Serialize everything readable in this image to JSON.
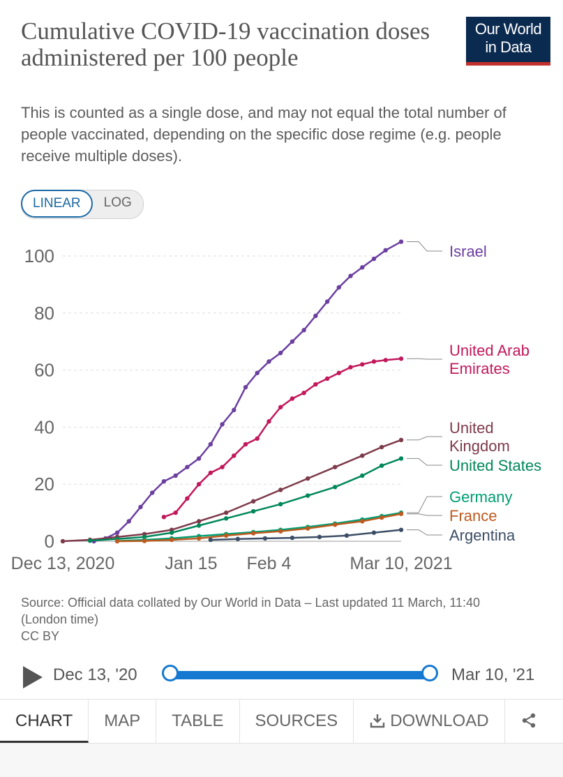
{
  "header": {
    "title": "Cumulative COVID-19 vaccination doses administered per 100 people",
    "subtitle": "This is counted as a single dose, and may not equal the total number of people vaccinated, depending on the specific dose regime (e.g. people receive multiple doses).",
    "logo_line1": "Our World",
    "logo_line2": "in Data"
  },
  "scale_toggle": {
    "linear_label": "LINEAR",
    "log_label": "LOG",
    "selected": "LINEAR"
  },
  "colors": {
    "israel": "#6b3fa0",
    "uae": "#c2185b",
    "uk": "#7d3a4a",
    "us": "#00875a",
    "germany": "#009e73",
    "france": "#bd5a1f",
    "argentina": "#3c4e66",
    "accent": "#1579d1",
    "logo_bg": "#0b2a4f",
    "logo_bar": "#c4302b"
  },
  "chart_data": {
    "type": "line",
    "title": "Cumulative COVID-19 vaccination doses administered per 100 people",
    "xlabel": "",
    "ylabel": "",
    "x_range": [
      "2020-12-13",
      "2021-03-10"
    ],
    "xticks": [
      {
        "date": "2020-12-13",
        "label": "Dec 13, 2020"
      },
      {
        "date": "2021-01-15",
        "label": "Jan 15"
      },
      {
        "date": "2021-02-04",
        "label": "Feb 4"
      },
      {
        "date": "2021-03-10",
        "label": "Mar 10, 2021"
      }
    ],
    "ylim": [
      0,
      100
    ],
    "yticks": [
      0,
      20,
      40,
      60,
      80,
      100
    ],
    "grid": true,
    "legend": "right, line-end labels",
    "series": [
      {
        "name": "Israel",
        "label_lines": [
          "Israel"
        ],
        "color": "#6b3fa0",
        "points": [
          [
            "2020-12-21",
            0
          ],
          [
            "2020-12-24",
            1
          ],
          [
            "2020-12-27",
            3
          ],
          [
            "2020-12-30",
            7
          ],
          [
            "2021-01-02",
            12
          ],
          [
            "2021-01-05",
            17
          ],
          [
            "2021-01-08",
            21
          ],
          [
            "2021-01-11",
            23
          ],
          [
            "2021-01-14",
            26
          ],
          [
            "2021-01-17",
            29
          ],
          [
            "2021-01-20",
            34
          ],
          [
            "2021-01-23",
            41
          ],
          [
            "2021-01-26",
            46
          ],
          [
            "2021-01-29",
            54
          ],
          [
            "2021-02-01",
            59
          ],
          [
            "2021-02-04",
            63
          ],
          [
            "2021-02-07",
            66
          ],
          [
            "2021-02-10",
            70
          ],
          [
            "2021-02-13",
            74
          ],
          [
            "2021-02-16",
            79
          ],
          [
            "2021-02-19",
            84
          ],
          [
            "2021-02-22",
            89
          ],
          [
            "2021-02-25",
            93
          ],
          [
            "2021-02-28",
            96
          ],
          [
            "2021-03-03",
            99
          ],
          [
            "2021-03-06",
            102
          ],
          [
            "2021-03-10",
            105
          ]
        ]
      },
      {
        "name": "United Arab Emirates",
        "label_lines": [
          "United Arab",
          "Emirates"
        ],
        "color": "#c2185b",
        "points": [
          [
            "2021-01-08",
            8.5
          ],
          [
            "2021-01-11",
            10
          ],
          [
            "2021-01-14",
            15
          ],
          [
            "2021-01-17",
            20
          ],
          [
            "2021-01-20",
            24
          ],
          [
            "2021-01-23",
            26
          ],
          [
            "2021-01-26",
            30
          ],
          [
            "2021-01-29",
            34
          ],
          [
            "2021-02-01",
            36
          ],
          [
            "2021-02-04",
            42
          ],
          [
            "2021-02-07",
            47
          ],
          [
            "2021-02-10",
            50
          ],
          [
            "2021-02-13",
            52
          ],
          [
            "2021-02-16",
            55
          ],
          [
            "2021-02-19",
            57
          ],
          [
            "2021-02-22",
            59
          ],
          [
            "2021-02-25",
            61
          ],
          [
            "2021-02-28",
            62
          ],
          [
            "2021-03-03",
            63
          ],
          [
            "2021-03-06",
            63.5
          ],
          [
            "2021-03-10",
            64
          ]
        ]
      },
      {
        "name": "United Kingdom",
        "label_lines": [
          "United",
          "Kingdom"
        ],
        "color": "#7d3a4a",
        "points": [
          [
            "2020-12-13",
            0
          ],
          [
            "2020-12-20",
            0.5
          ],
          [
            "2020-12-27",
            1.5
          ],
          [
            "2021-01-03",
            2.5
          ],
          [
            "2021-01-10",
            4
          ],
          [
            "2021-01-17",
            7
          ],
          [
            "2021-01-24",
            10
          ],
          [
            "2021-01-31",
            14
          ],
          [
            "2021-02-07",
            18
          ],
          [
            "2021-02-14",
            22
          ],
          [
            "2021-02-21",
            26
          ],
          [
            "2021-02-28",
            30
          ],
          [
            "2021-03-05",
            33
          ],
          [
            "2021-03-10",
            35.5
          ]
        ]
      },
      {
        "name": "United States",
        "label_lines": [
          "United States"
        ],
        "color": "#00875a",
        "points": [
          [
            "2020-12-20",
            0.2
          ],
          [
            "2020-12-27",
            0.8
          ],
          [
            "2021-01-03",
            1.5
          ],
          [
            "2021-01-10",
            3
          ],
          [
            "2021-01-17",
            5.5
          ],
          [
            "2021-01-24",
            8
          ],
          [
            "2021-01-31",
            10.5
          ],
          [
            "2021-02-07",
            13
          ],
          [
            "2021-02-14",
            16
          ],
          [
            "2021-02-21",
            19
          ],
          [
            "2021-02-28",
            23
          ],
          [
            "2021-03-05",
            26.5
          ],
          [
            "2021-03-10",
            29
          ]
        ]
      },
      {
        "name": "Germany",
        "label_lines": [
          "Germany"
        ],
        "color": "#009e73",
        "points": [
          [
            "2020-12-27",
            0.1
          ],
          [
            "2021-01-03",
            0.5
          ],
          [
            "2021-01-10",
            1
          ],
          [
            "2021-01-17",
            1.8
          ],
          [
            "2021-01-24",
            2.5
          ],
          [
            "2021-01-31",
            3.2
          ],
          [
            "2021-02-07",
            4
          ],
          [
            "2021-02-14",
            5
          ],
          [
            "2021-02-21",
            6.2
          ],
          [
            "2021-02-28",
            7.6
          ],
          [
            "2021-03-05",
            8.8
          ],
          [
            "2021-03-10",
            10
          ]
        ]
      },
      {
        "name": "France",
        "label_lines": [
          "France"
        ],
        "color": "#bd5a1f",
        "points": [
          [
            "2020-12-27",
            0
          ],
          [
            "2021-01-03",
            0.1
          ],
          [
            "2021-01-10",
            0.5
          ],
          [
            "2021-01-17",
            1
          ],
          [
            "2021-01-24",
            2
          ],
          [
            "2021-01-31",
            2.8
          ],
          [
            "2021-02-07",
            3.5
          ],
          [
            "2021-02-14",
            4.5
          ],
          [
            "2021-02-21",
            5.8
          ],
          [
            "2021-02-28",
            7
          ],
          [
            "2021-03-05",
            8.3
          ],
          [
            "2021-03-10",
            9.6
          ]
        ]
      },
      {
        "name": "Argentina",
        "label_lines": [
          "Argentina"
        ],
        "color": "#3c4e66",
        "points": [
          [
            "2021-01-20",
            0.5
          ],
          [
            "2021-01-27",
            0.8
          ],
          [
            "2021-02-03",
            1
          ],
          [
            "2021-02-10",
            1.2
          ],
          [
            "2021-02-17",
            1.5
          ],
          [
            "2021-02-24",
            2
          ],
          [
            "2021-03-03",
            3
          ],
          [
            "2021-03-10",
            4
          ]
        ]
      }
    ]
  },
  "source_text": "Source: Official data collated by Our World in Data – Last updated 11 March, 11:40 (London time)",
  "license": "CC BY",
  "timeline": {
    "start_label": "Dec 13, '20",
    "end_label": "Mar 10, '21",
    "start_fraction": 0,
    "end_fraction": 1
  },
  "tabs": [
    {
      "label": "CHART",
      "active": true
    },
    {
      "label": "MAP",
      "active": false
    },
    {
      "label": "TABLE",
      "active": false
    },
    {
      "label": "SOURCES",
      "active": false
    },
    {
      "label": "DOWNLOAD",
      "active": false
    }
  ],
  "icons": {
    "play": "play-icon",
    "download": "download-icon",
    "share": "share-icon"
  }
}
